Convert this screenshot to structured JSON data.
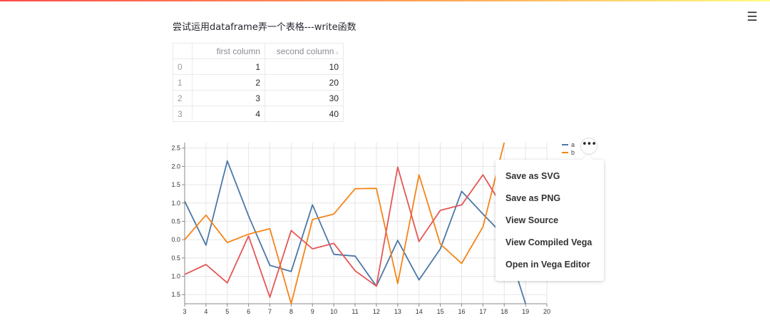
{
  "header": {
    "gradient_colors": [
      "#ff4b4b",
      "#fdab5a",
      "#fffd80"
    ],
    "menu_icon": "hamburger-menu-icon",
    "menu_glyph": "☰"
  },
  "page": {
    "title": "尝试运用dataframe弄一个表格---write函数"
  },
  "table": {
    "columns": [
      "",
      "first column",
      "second column"
    ],
    "sort_icon": "sort-icon",
    "rows": [
      {
        "index": "0",
        "first": "1",
        "second": "10"
      },
      {
        "index": "1",
        "first": "2",
        "second": "20"
      },
      {
        "index": "2",
        "first": "3",
        "second": "30"
      },
      {
        "index": "3",
        "first": "4",
        "second": "40"
      }
    ]
  },
  "chart_data": {
    "type": "line",
    "x": [
      3,
      4,
      5,
      6,
      7,
      8,
      9,
      10,
      11,
      12,
      13,
      14,
      15,
      16,
      17,
      18,
      19,
      20
    ],
    "x_tick_labels": [
      "3",
      "4",
      "5",
      "6",
      "7",
      "8",
      "9",
      "10",
      "11",
      "12",
      "13",
      "14",
      "15",
      "16",
      "17",
      "18",
      "19",
      "20"
    ],
    "y_tick_labels": [
      "2.5",
      "2.0",
      "1.5",
      "1.0",
      "0.5",
      "0.0",
      "0.5",
      "1.0",
      "1.5"
    ],
    "y_tick_values": [
      2.5,
      2.0,
      1.5,
      1.0,
      0.5,
      0.0,
      -0.5,
      -1.0,
      -1.5
    ],
    "ylim": [
      -1.75,
      2.65
    ],
    "xlim": [
      3,
      20
    ],
    "grid": true,
    "legend_position": "top-right",
    "series": [
      {
        "name": "a",
        "color": "#4c78a8",
        "values": [
          1.05,
          -0.15,
          2.15,
          0.65,
          -0.7,
          -0.87,
          0.95,
          -0.4,
          -0.45,
          -1.27,
          -0.02,
          -1.1,
          -0.25,
          1.32,
          0.7,
          0.1,
          -1.75,
          null
        ]
      },
      {
        "name": "b",
        "color": "#f58518",
        "values": [
          0.0,
          0.67,
          -0.08,
          0.15,
          0.3,
          -1.75,
          0.55,
          0.7,
          1.39,
          1.4,
          -1.2,
          1.77,
          -0.12,
          -0.65,
          0.35,
          2.65,
          null,
          null
        ]
      },
      {
        "name": "",
        "color": "#e45756",
        "values": [
          -0.95,
          -0.68,
          -1.18,
          0.1,
          -1.57,
          0.25,
          -0.25,
          -0.1,
          -0.85,
          -1.27,
          1.98,
          -0.05,
          0.8,
          0.95,
          1.77,
          0.83,
          null,
          null
        ]
      }
    ]
  },
  "actions": {
    "button_icon": "more-horizontal-icon",
    "button_glyph": "•••",
    "items": [
      "Save as SVG",
      "Save as PNG",
      "View Source",
      "View Compiled Vega",
      "Open in Vega Editor"
    ]
  }
}
